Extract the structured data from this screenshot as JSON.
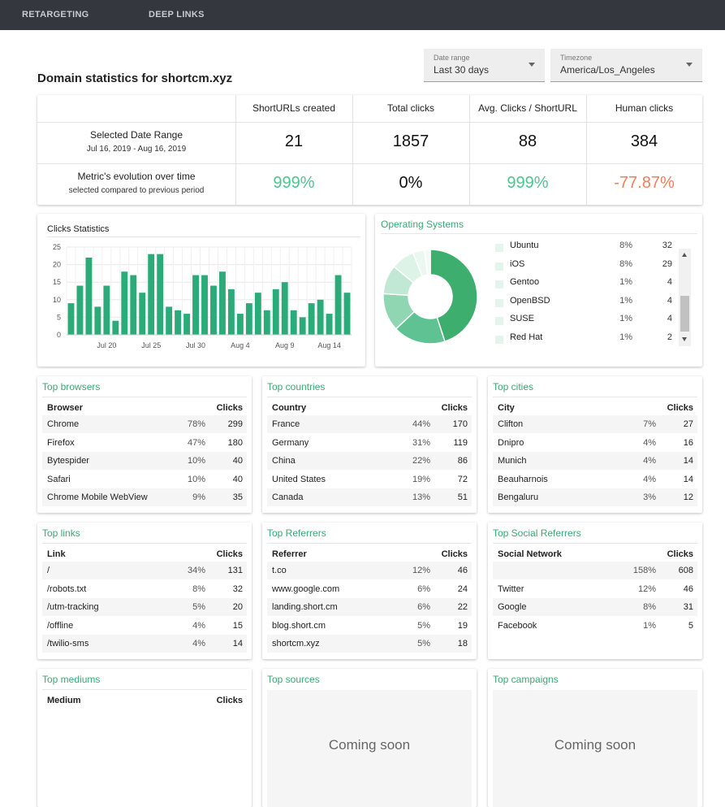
{
  "nav": [
    "RETARGETING",
    "DEEP LINKS"
  ],
  "title": "Domain statistics for shortcm.xyz",
  "filters": [
    {
      "label": "Date range",
      "value": "Last 30 days"
    },
    {
      "label": "Timezone",
      "value": "America/Los_Angeles"
    }
  ],
  "stats": {
    "columns": [
      "ShortURLs created",
      "Total clicks",
      "Avg. Clicks / ShortURL",
      "Human clicks"
    ],
    "rows": [
      {
        "label": "Selected Date Range",
        "sublabel": "Jul 16, 2019 - Aug 16, 2019",
        "values": [
          21,
          1857,
          88,
          384
        ],
        "colors": [
          "#111111",
          "#111111",
          "#111111",
          "#111111"
        ]
      },
      {
        "label": "Metric's evolution over time",
        "sublabel": "selected compared to previous period",
        "values": [
          "999%",
          "0%",
          "999%",
          "-77.87%"
        ],
        "colors": [
          "#4cc593",
          "#111111",
          "#4cc593",
          "#ec7f5e"
        ]
      }
    ]
  },
  "chart_data": [
    {
      "type": "bar",
      "title": "Clicks Statistics",
      "categories": [
        null,
        null,
        null,
        null,
        "Jul 20",
        null,
        null,
        null,
        null,
        "Jul 25",
        null,
        null,
        null,
        null,
        "Jul 30",
        null,
        null,
        null,
        null,
        "Aug 4",
        null,
        null,
        null,
        null,
        "Aug 9",
        null,
        null,
        null,
        null,
        "Aug 14",
        null,
        null
      ],
      "values": [
        9,
        14,
        22,
        8,
        14,
        4,
        18,
        17,
        12,
        23,
        23,
        8,
        7,
        6,
        17,
        17,
        14,
        18,
        13,
        6,
        9,
        12,
        7,
        13,
        15,
        7,
        5,
        9,
        10,
        6,
        17,
        12
      ],
      "color": "#2bab7a",
      "ylim": [
        0,
        25
      ],
      "yticks": [
        0,
        5,
        10,
        15,
        20,
        25
      ],
      "grid": true
    },
    {
      "type": "pie",
      "title": "Operating Systems",
      "values": [
        45,
        18,
        13,
        10,
        8,
        4,
        2
      ],
      "colors": [
        "#3dae6d",
        "#5ec293",
        "#91d6b3",
        "#c0e8d4",
        "#dcf3e7",
        "#eaf8f1",
        "#f4fbf7"
      ],
      "legend": [
        {
          "name": "Ubuntu",
          "pct": "8%",
          "value": 32
        },
        {
          "name": "iOS",
          "pct": "8%",
          "value": 29
        },
        {
          "name": "Gentoo",
          "pct": "1%",
          "value": 4
        },
        {
          "name": "OpenBSD",
          "pct": "1%",
          "value": 4
        },
        {
          "name": "SUSE",
          "pct": "1%",
          "value": 4
        },
        {
          "name": "Red Hat",
          "pct": "1%",
          "value": 2
        }
      ]
    }
  ],
  "tables": [
    {
      "title": "Top browsers",
      "headers": [
        "Browser",
        "Clicks"
      ],
      "rows": [
        [
          "Chrome",
          "78%",
          299
        ],
        [
          "Firefox",
          "47%",
          180
        ],
        [
          "Bytespider",
          "10%",
          40
        ],
        [
          "Safari",
          "10%",
          40
        ],
        [
          "Chrome Mobile WebView",
          "9%",
          35
        ]
      ]
    },
    {
      "title": "Top countries",
      "headers": [
        "Country",
        "Clicks"
      ],
      "rows": [
        [
          "France",
          "44%",
          170
        ],
        [
          "Germany",
          "31%",
          119
        ],
        [
          "China",
          "22%",
          86
        ],
        [
          "United States",
          "19%",
          72
        ],
        [
          "Canada",
          "13%",
          51
        ]
      ]
    },
    {
      "title": "Top cities",
      "headers": [
        "City",
        "Clicks"
      ],
      "rows": [
        [
          "Clifton",
          "7%",
          27
        ],
        [
          "Dnipro",
          "4%",
          16
        ],
        [
          "Munich",
          "4%",
          14
        ],
        [
          "Beauharnois",
          "4%",
          14
        ],
        [
          "Bengaluru",
          "3%",
          12
        ]
      ]
    },
    {
      "title": "Top links",
      "headers": [
        "Link",
        "Clicks"
      ],
      "rows": [
        [
          "/",
          "34%",
          131
        ],
        [
          "/robots.txt",
          "8%",
          32
        ],
        [
          "/utm-tracking",
          "5%",
          20
        ],
        [
          "/offline",
          "4%",
          15
        ],
        [
          "/twilio-sms",
          "4%",
          14
        ]
      ]
    },
    {
      "title": "Top Referrers",
      "headers": [
        "Referrer",
        "Clicks"
      ],
      "rows": [
        [
          "t.co",
          "12%",
          46
        ],
        [
          "www.google.com",
          "6%",
          24
        ],
        [
          "landing.short.cm",
          "6%",
          22
        ],
        [
          "blog.short.cm",
          "5%",
          19
        ],
        [
          "shortcm.xyz",
          "5%",
          18
        ]
      ]
    },
    {
      "title": "Top Social Referrers",
      "headers": [
        "Social Network",
        "Clicks"
      ],
      "rows": [
        [
          null,
          "158%",
          608
        ],
        [
          "Twitter",
          "12%",
          46
        ],
        [
          "Google",
          "8%",
          31
        ],
        [
          "Facebook",
          "1%",
          5
        ]
      ]
    },
    {
      "title": "Top mediums",
      "headers": [
        "Medium",
        "Clicks"
      ],
      "rows": []
    }
  ],
  "placeholders": [
    {
      "title": "Top sources",
      "text": "Coming soon"
    },
    {
      "title": "Top campaigns",
      "text": "Coming soon"
    }
  ]
}
